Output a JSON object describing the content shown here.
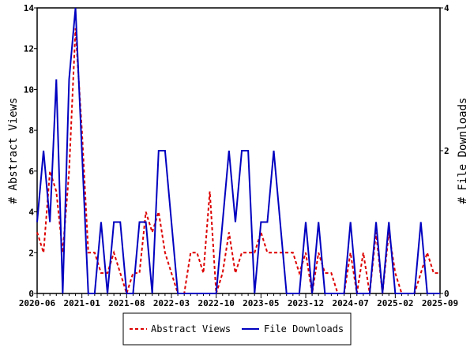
{
  "chart_data": {
    "type": "line",
    "x_tick_labels": [
      "2020-06",
      "2021-01",
      "2021-08",
      "2022-03",
      "2022-10",
      "2023-05",
      "2023-12",
      "2024-07",
      "2025-02",
      "2025-09"
    ],
    "x_start": "2020-06",
    "x_end": "2025-09",
    "months": 64,
    "ylabel": "# Abstract Views",
    "y2label": "# File Downloads",
    "ylim": [
      0,
      14
    ],
    "y_ticks": [
      "0",
      "2",
      "4",
      "6",
      "8",
      "10",
      "12",
      "14"
    ],
    "y2lim": [
      0,
      4
    ],
    "y2_ticks": [
      "0",
      "2",
      "4"
    ],
    "legend_placement": "bottom",
    "series": [
      {
        "name": "Abstract Views",
        "axis": "left",
        "color": "#dd0000",
        "style": "dashed",
        "values": [
          3,
          2,
          6,
          5,
          2,
          6,
          13,
          8,
          2,
          2,
          1,
          1,
          2,
          1,
          0,
          1,
          1,
          4,
          3,
          4,
          2,
          1,
          0,
          0,
          2,
          2,
          1,
          5,
          0,
          1,
          3,
          1,
          2,
          2,
          2,
          3,
          2,
          2,
          2,
          2,
          2,
          1,
          2,
          0,
          2,
          1,
          1,
          0,
          0,
          2,
          0,
          2,
          0,
          3,
          0,
          3,
          1,
          0,
          0,
          0,
          1,
          2,
          1,
          1
        ]
      },
      {
        "name": "File Downloads",
        "axis": "right",
        "color": "#0000c0",
        "style": "solid",
        "values": [
          1,
          2,
          1,
          3,
          0,
          3,
          4,
          2,
          0,
          0,
          1,
          0,
          1,
          1,
          0,
          0,
          1,
          1,
          0,
          2,
          2,
          1,
          0,
          0,
          0,
          0,
          0,
          0,
          0,
          1,
          2,
          1,
          2,
          2,
          0,
          1,
          1,
          2,
          1,
          0,
          0,
          0,
          1,
          0,
          1,
          0,
          0,
          0,
          0,
          1,
          0,
          0,
          0,
          1,
          0,
          1,
          0,
          0,
          0,
          0,
          1,
          0,
          0,
          0
        ]
      }
    ]
  }
}
